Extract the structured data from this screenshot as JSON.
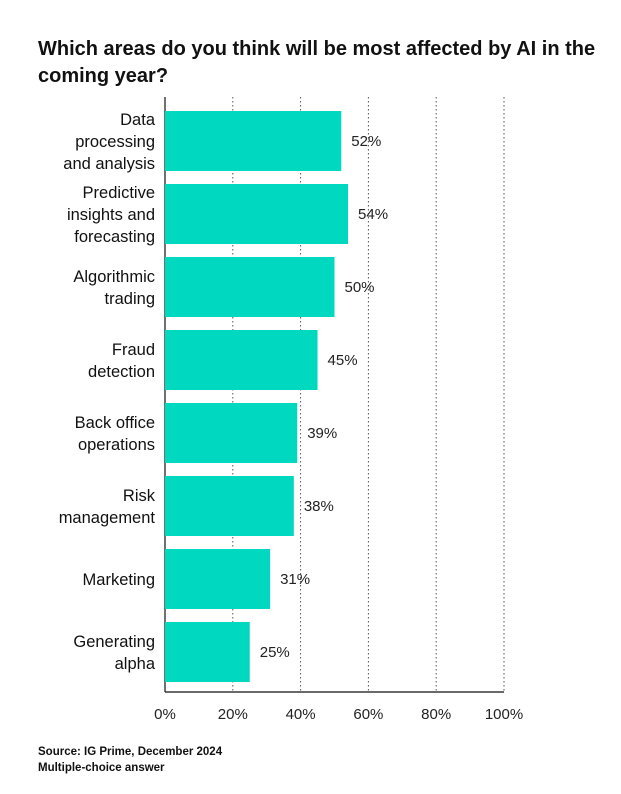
{
  "chart_data": {
    "type": "bar",
    "orientation": "horizontal",
    "title": "Which areas do you think will be most affected by AI in the coming year?",
    "categories": [
      "Data processing and analysis",
      "Predictive insights and forecasting",
      "Algorithmic trading",
      "Fraud detection",
      "Back office operations",
      "Risk management",
      "Marketing",
      "Generating alpha"
    ],
    "category_lines": [
      [
        "Data",
        "processing",
        "and analysis"
      ],
      [
        "Predictive",
        "insights and",
        "forecasting"
      ],
      [
        "Algorithmic",
        "trading"
      ],
      [
        "Fraud",
        "detection"
      ],
      [
        "Back office",
        "operations"
      ],
      [
        "Risk",
        "management"
      ],
      [
        "Marketing"
      ],
      [
        "Generating",
        "alpha"
      ]
    ],
    "values": [
      52,
      54,
      50,
      45,
      39,
      38,
      31,
      25
    ],
    "value_labels": [
      "52%",
      "54%",
      "50%",
      "45%",
      "39%",
      "38%",
      "31%",
      "25%"
    ],
    "xlim": [
      0,
      100
    ],
    "xticks": [
      0,
      20,
      40,
      60,
      80,
      100
    ],
    "xtick_labels": [
      "0%",
      "20%",
      "40%",
      "60%",
      "80%",
      "100%"
    ],
    "xlabel": "",
    "ylabel": "",
    "grid": "vertical dotted",
    "legend": "none",
    "bar_color": "#00D9C0"
  },
  "footer": {
    "source": "Source: IG Prime, December 2024",
    "note": "Multiple-choice answer"
  }
}
